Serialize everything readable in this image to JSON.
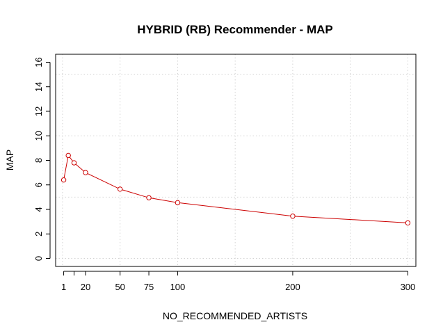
{
  "chart_data": {
    "type": "line",
    "title": "HYBRID (RB) Recommender - MAP",
    "xlabel": "NO_RECOMMENDED_ARTISTS",
    "ylabel": "MAP",
    "xlim": [
      -6,
      307
    ],
    "ylim": [
      -0.65,
      16.65
    ],
    "x_ticks": [
      1,
      10,
      20,
      50,
      75,
      100,
      200,
      300
    ],
    "x_tick_labels": [
      "1",
      "",
      "20",
      "50",
      "75",
      "100",
      "200",
      "300"
    ],
    "y_ticks": [
      0,
      2,
      4,
      6,
      8,
      10,
      12,
      14,
      16
    ],
    "y_tick_labels": [
      "0",
      "2",
      "4",
      "6",
      "8",
      "10",
      "12",
      "14",
      "16"
    ],
    "x_gridlines": [
      0,
      50,
      100,
      150,
      200,
      250,
      300
    ],
    "y_gridlines": [
      0,
      5,
      10,
      15
    ],
    "grid": true,
    "series": [
      {
        "color": "#cc0000",
        "x": [
          1,
          5,
          10,
          20,
          50,
          75,
          100,
          200,
          300
        ],
        "y": [
          6.4,
          8.4,
          7.8,
          7.0,
          5.65,
          4.95,
          4.55,
          3.45,
          2.9
        ]
      }
    ]
  }
}
